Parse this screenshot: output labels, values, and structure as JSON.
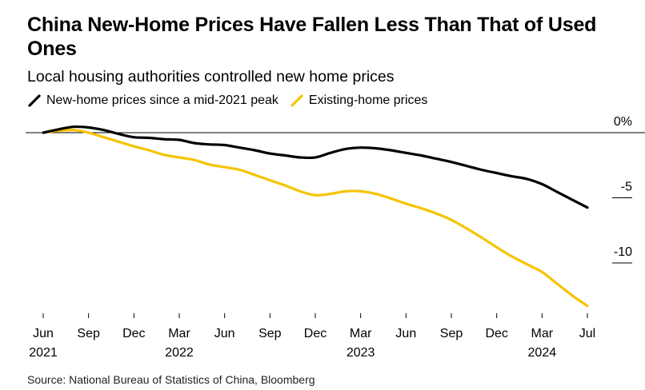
{
  "header": {
    "title": "China New-Home Prices Have Fallen Less Than That of Used Ones",
    "subtitle": "Local housing authorities controlled new home prices"
  },
  "legend": {
    "items": [
      {
        "label": "New-home prices since a mid-2021 peak",
        "color": "#000000"
      },
      {
        "label": "Existing-home prices",
        "color": "#f5c400"
      }
    ]
  },
  "footer": {
    "source": "Source: National Bureau of Statistics of China, Bloomberg"
  },
  "chart_data": {
    "type": "line",
    "title": "China New-Home Prices Have Fallen Less Than That of Used Ones",
    "subtitle": "Local housing authorities controlled new home prices",
    "xlabel": "",
    "ylabel": "",
    "ylim": [
      -13.5,
      2
    ],
    "y_ticks": [
      0,
      -5,
      -10
    ],
    "y_tick_labels": [
      "0%",
      "-5",
      "-10"
    ],
    "x_tick_months": [
      0,
      3,
      6,
      9,
      12,
      15,
      18,
      21,
      24,
      27,
      30,
      33,
      36
    ],
    "x_tick_labels": [
      {
        "month": "Jun",
        "year": "2021"
      },
      {
        "month": "Sep",
        "year": ""
      },
      {
        "month": "Dec",
        "year": ""
      },
      {
        "month": "Mar",
        "year": "2022"
      },
      {
        "month": "Jun",
        "year": ""
      },
      {
        "month": "Sep",
        "year": ""
      },
      {
        "month": "Dec",
        "year": ""
      },
      {
        "month": "Mar",
        "year": "2023"
      },
      {
        "month": "Jun",
        "year": ""
      },
      {
        "month": "Sep",
        "year": ""
      },
      {
        "month": "Dec",
        "year": ""
      },
      {
        "month": "Mar",
        "year": "2024"
      },
      {
        "month": "Jul",
        "year": ""
      }
    ],
    "grid": false,
    "legend_position": "top-left",
    "series": [
      {
        "name": "New-home prices since a mid-2021 peak",
        "color": "#000000",
        "values": [
          0,
          0.25,
          0.45,
          0.4,
          0.2,
          -0.1,
          -0.35,
          -0.4,
          -0.5,
          -0.55,
          -0.8,
          -0.9,
          -0.95,
          -1.15,
          -1.35,
          -1.6,
          -1.75,
          -1.9,
          -1.9,
          -1.55,
          -1.25,
          -1.15,
          -1.2,
          -1.35,
          -1.55,
          -1.75,
          -2.0,
          -2.25,
          -2.55,
          -2.85,
          -3.1,
          -3.35,
          -3.55,
          -3.95,
          -4.55,
          -5.15,
          -5.75
        ]
      },
      {
        "name": "Existing-home prices",
        "color": "#f5c400",
        "values": [
          0,
          0.15,
          0.2,
          0.0,
          -0.35,
          -0.7,
          -1.05,
          -1.35,
          -1.7,
          -1.9,
          -2.1,
          -2.45,
          -2.65,
          -2.85,
          -3.25,
          -3.65,
          -4.05,
          -4.5,
          -4.8,
          -4.7,
          -4.5,
          -4.5,
          -4.7,
          -5.05,
          -5.45,
          -5.8,
          -6.2,
          -6.7,
          -7.35,
          -8.05,
          -8.8,
          -9.5,
          -10.1,
          -10.7,
          -11.6,
          -12.5,
          -13.3
        ]
      }
    ]
  }
}
